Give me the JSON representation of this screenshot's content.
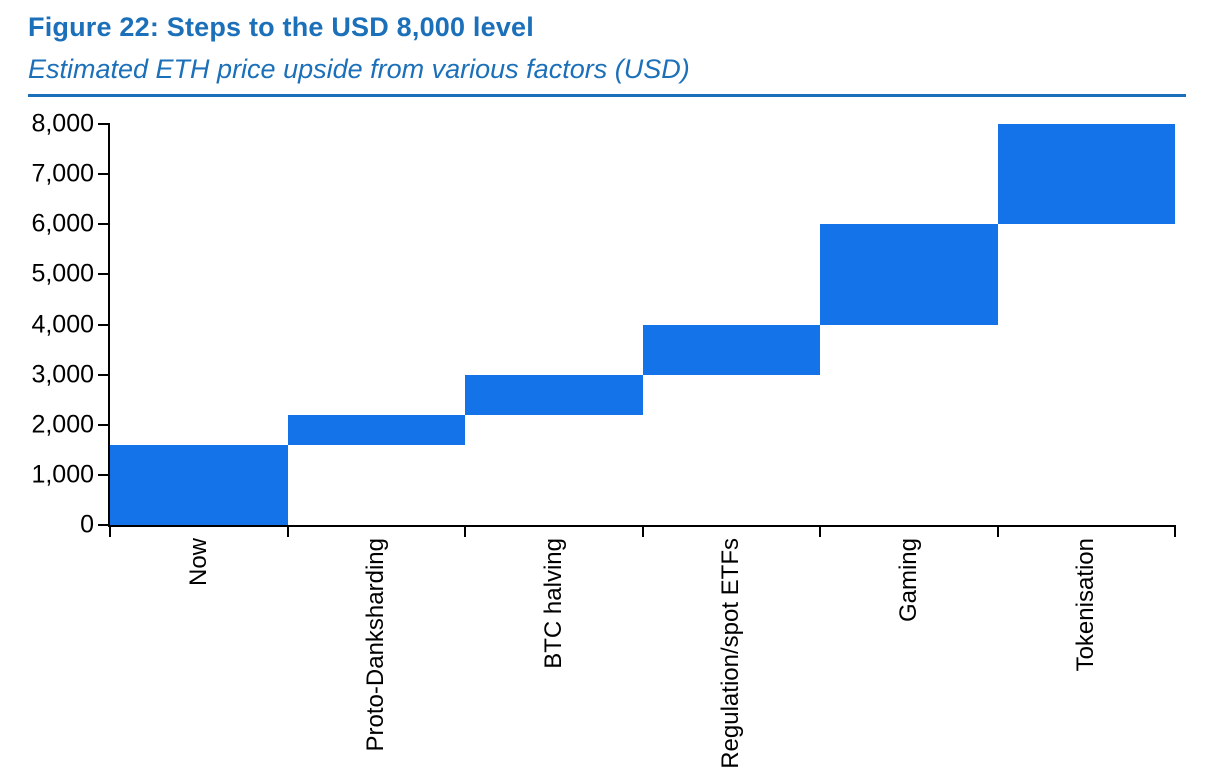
{
  "header": {
    "title": "Figure 22: Steps to the USD 8,000 level",
    "subtitle": "Estimated ETH price upside from various factors (USD)",
    "accent_color": "#1b70b9"
  },
  "chart_data": {
    "type": "bar",
    "subtype": "waterfall",
    "title": "Figure 22: Steps to the USD 8,000 level",
    "subtitle": "Estimated ETH price upside from various factors (USD)",
    "categories": [
      "Now",
      "Proto-Danksharding",
      "BTC halving",
      "Regulation/spot ETFs",
      "Gaming",
      "Tokenisation"
    ],
    "segments": [
      {
        "label": "Now",
        "start": 0,
        "end": 1600
      },
      {
        "label": "Proto-Danksharding",
        "start": 1600,
        "end": 2200
      },
      {
        "label": "BTC halving",
        "start": 2200,
        "end": 3000
      },
      {
        "label": "Regulation/spot ETFs",
        "start": 3000,
        "end": 4000
      },
      {
        "label": "Gaming",
        "start": 4000,
        "end": 6000
      },
      {
        "label": "Tokenisation",
        "start": 6000,
        "end": 8000
      }
    ],
    "increments": [
      1600,
      600,
      800,
      1000,
      2000,
      2000
    ],
    "cumulative_levels": [
      1600,
      2200,
      3000,
      4000,
      6000,
      8000
    ],
    "unit": "USD",
    "bar_color": "#1473e8",
    "axis_color": "#000000",
    "ylim": [
      0,
      8000
    ],
    "ytick_interval": 1000,
    "ytick_labels": [
      "0",
      "1,000",
      "2,000",
      "3,000",
      "4,000",
      "5,000",
      "6,000",
      "7,000",
      "8,000"
    ],
    "xlabel": "",
    "ylabel": "",
    "grid": false,
    "legend": "none",
    "x_label_rotation": "vertical-bottom-to-top"
  }
}
